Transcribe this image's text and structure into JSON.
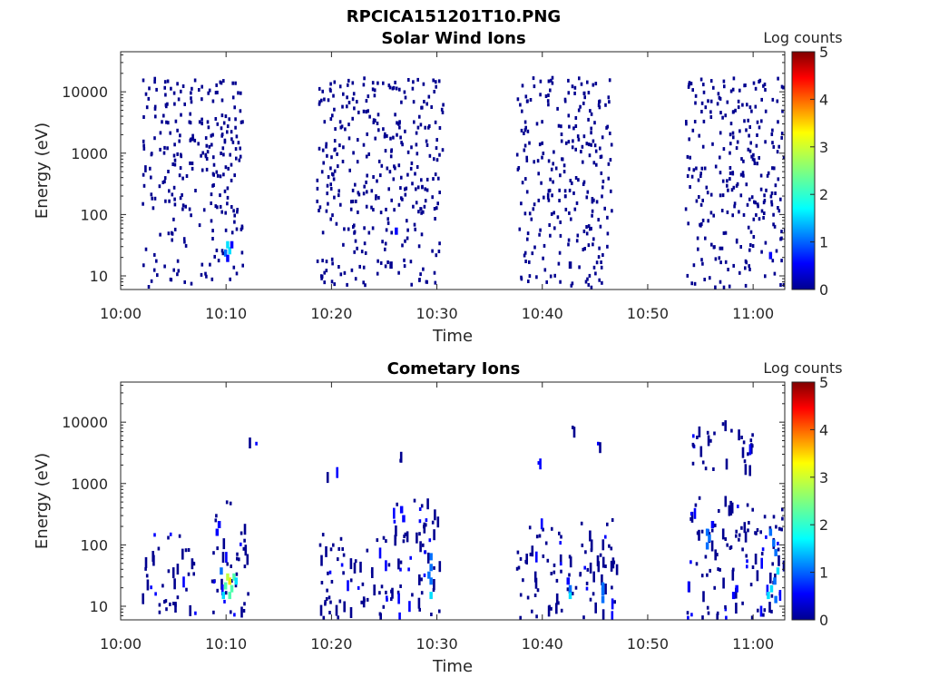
{
  "figure": {
    "filename_title": "RPCICA151201T10.PNG"
  },
  "colormap": [
    "#00008f",
    "#0000ff",
    "#0070ff",
    "#00dfff",
    "#50ffaf",
    "#bfff40",
    "#ffdf00",
    "#ff7000",
    "#ff0000",
    "#8f0000"
  ],
  "chart_data": [
    {
      "type": "heatmap",
      "title": "Solar Wind Ions",
      "xlabel": "Time",
      "ylabel": "Energy (eV)",
      "x_ticks": [
        "10:00",
        "10:10",
        "10:20",
        "10:30",
        "10:40",
        "10:50",
        "11:00"
      ],
      "x_range_minutes": [
        0,
        63
      ],
      "y_scale": "log",
      "y_ticks": [
        "10",
        "100",
        "1000",
        "10000"
      ],
      "y_range": [
        6,
        45000
      ],
      "colorbar": {
        "label": "Log counts",
        "range": [
          0,
          5
        ],
        "ticks": [
          "0",
          "1",
          "2",
          "3",
          "4",
          "5"
        ]
      },
      "active_intervals_minutes": [
        [
          2,
          11.5
        ],
        [
          18.5,
          30.5
        ],
        [
          37.5,
          46.5
        ],
        [
          53.5,
          63
        ]
      ],
      "cells": [
        {
          "t": 10.0,
          "e": 30,
          "v": 1.8
        },
        {
          "t": 10.2,
          "e": 24,
          "v": 1.6
        },
        {
          "t": 9.8,
          "e": 22,
          "v": 1.2
        },
        {
          "t": 10.4,
          "e": 30,
          "v": 0.9
        },
        {
          "t": 10.0,
          "e": 18,
          "v": 0.8
        },
        {
          "t": 26.0,
          "e": 50,
          "v": 0.5
        },
        {
          "t": 25.5,
          "e": 14,
          "v": 0.4
        },
        {
          "t": 42.5,
          "e": 14,
          "v": 0.4
        },
        {
          "t": 61.5,
          "e": 20,
          "v": 0.5
        }
      ]
    },
    {
      "type": "heatmap",
      "title": "Cometary Ions",
      "xlabel": "Time",
      "ylabel": "Energy (eV)",
      "x_ticks": [
        "10:00",
        "10:10",
        "10:20",
        "10:30",
        "10:40",
        "10:50",
        "11:00"
      ],
      "x_range_minutes": [
        0,
        63
      ],
      "y_scale": "log",
      "y_ticks": [
        "10",
        "100",
        "1000",
        "10000"
      ],
      "y_range": [
        6,
        45000
      ],
      "colorbar": {
        "label": "Log counts",
        "range": [
          0,
          5
        ],
        "ticks": [
          "0",
          "1",
          "2",
          "3",
          "4",
          "5"
        ]
      },
      "cells": [
        {
          "t": 10.2,
          "e": 24,
          "v": 3.0
        },
        {
          "t": 10.0,
          "e": 28,
          "v": 2.6
        },
        {
          "t": 10.4,
          "e": 18,
          "v": 2.4
        },
        {
          "t": 9.8,
          "e": 20,
          "v": 2.2
        },
        {
          "t": 10.6,
          "e": 28,
          "v": 2.0
        },
        {
          "t": 9.6,
          "e": 14,
          "v": 1.8
        },
        {
          "t": 10.2,
          "e": 14,
          "v": 2.0
        },
        {
          "t": 10.8,
          "e": 24,
          "v": 1.5
        },
        {
          "t": 9.4,
          "e": 35,
          "v": 1.0
        },
        {
          "t": 9.2,
          "e": 200,
          "v": 0.8
        },
        {
          "t": 9.0,
          "e": 150,
          "v": 0.7
        },
        {
          "t": 29.3,
          "e": 60,
          "v": 1.2
        },
        {
          "t": 29.3,
          "e": 40,
          "v": 1.4
        },
        {
          "t": 29.3,
          "e": 24,
          "v": 1.3
        },
        {
          "t": 29.3,
          "e": 14,
          "v": 1.6
        },
        {
          "t": 29.1,
          "e": 30,
          "v": 1.0
        },
        {
          "t": 26.5,
          "e": 350,
          "v": 0.8
        },
        {
          "t": 26.7,
          "e": 250,
          "v": 0.7
        },
        {
          "t": 42.5,
          "e": 14,
          "v": 1.7
        },
        {
          "t": 42.5,
          "e": 18,
          "v": 1.2
        },
        {
          "t": 42.3,
          "e": 24,
          "v": 0.9
        },
        {
          "t": 45.6,
          "e": 12,
          "v": 1.4
        },
        {
          "t": 45.6,
          "e": 16,
          "v": 1.2
        },
        {
          "t": 45.6,
          "e": 20,
          "v": 1.0
        },
        {
          "t": 55.5,
          "e": 150,
          "v": 1.0
        },
        {
          "t": 55.7,
          "e": 120,
          "v": 1.2
        },
        {
          "t": 55.5,
          "e": 90,
          "v": 1.0
        },
        {
          "t": 56.0,
          "e": 200,
          "v": 0.8
        },
        {
          "t": 61.5,
          "e": 150,
          "v": 1.1
        },
        {
          "t": 61.8,
          "e": 100,
          "v": 1.3
        },
        {
          "t": 62.0,
          "e": 70,
          "v": 1.0
        },
        {
          "t": 61.3,
          "e": 14,
          "v": 1.8
        },
        {
          "t": 61.6,
          "e": 18,
          "v": 1.6
        },
        {
          "t": 61.9,
          "e": 24,
          "v": 1.2
        },
        {
          "t": 62.2,
          "e": 35,
          "v": 1.5
        },
        {
          "t": 62.0,
          "e": 12,
          "v": 1.4
        },
        {
          "t": 58.0,
          "e": 14,
          "v": 0.9
        },
        {
          "t": 58.3,
          "e": 18,
          "v": 0.8
        }
      ],
      "sparse_regions": [
        {
          "t": [
            2,
            7
          ],
          "e": [
            6,
            140
          ]
        },
        {
          "t": [
            8.5,
            12
          ],
          "e": [
            6,
            500
          ]
        },
        {
          "t": [
            12,
            13
          ],
          "e": [
            4000,
            5000
          ]
        },
        {
          "t": [
            18.5,
            25
          ],
          "e": [
            6,
            150
          ]
        },
        {
          "t": [
            19.5,
            20.5
          ],
          "e": [
            1300,
            3000
          ]
        },
        {
          "t": [
            25,
            30.5
          ],
          "e": [
            6,
            500
          ]
        },
        {
          "t": [
            26,
            26.5
          ],
          "e": [
            1500,
            3000
          ]
        },
        {
          "t": [
            37.5,
            47
          ],
          "e": [
            6,
            250
          ]
        },
        {
          "t": [
            39.5,
            40
          ],
          "e": [
            2000,
            2400
          ]
        },
        {
          "t": [
            42.5,
            43
          ],
          "e": [
            7000,
            7800
          ]
        },
        {
          "t": [
            45,
            45.5
          ],
          "e": [
            3800,
            4200
          ]
        },
        {
          "t": [
            53.5,
            63
          ],
          "e": [
            6,
            550
          ]
        },
        {
          "t": [
            54,
            60.5
          ],
          "e": [
            1500,
            10000
          ]
        }
      ]
    }
  ]
}
